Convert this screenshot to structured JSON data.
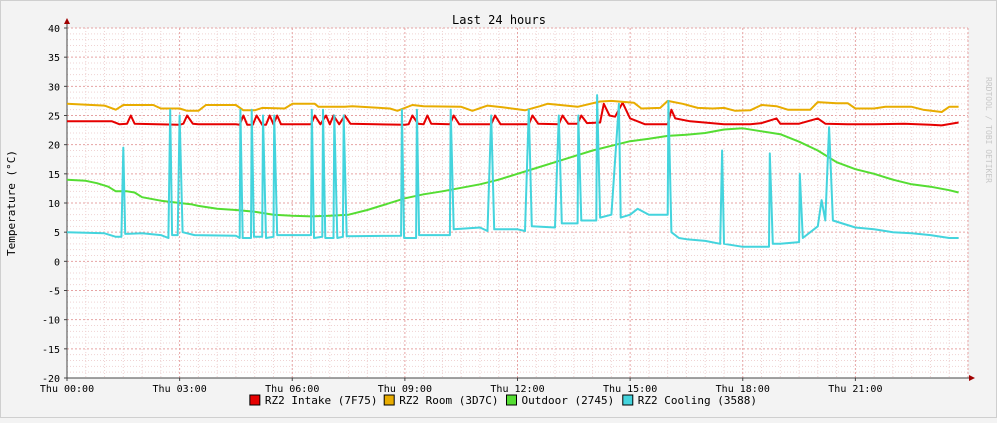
{
  "chart_data": {
    "type": "line",
    "title": "Last 24 hours",
    "ylabel": "Temperature (°C)",
    "xlabel": "",
    "watermark": "RRDTOOL / TOBI OETIKER",
    "ylim": [
      -20,
      40
    ],
    "y_ticks": [
      40,
      35,
      30,
      25,
      20,
      15,
      10,
      5,
      0,
      -5,
      -10,
      -15,
      -20
    ],
    "x_ticks": [
      "Thu 00:00",
      "Thu 03:00",
      "Thu 06:00",
      "Thu 09:00",
      "Thu 12:00",
      "Thu 15:00",
      "Thu 18:00",
      "Thu 21:00"
    ],
    "x_range_hours": [
      0,
      23.75
    ],
    "grid": true,
    "legend_position": "bottom",
    "series": [
      {
        "name": "RZ2 Intake (7F75)",
        "color": "#e60000",
        "points": [
          [
            0,
            24
          ],
          [
            1.2,
            24
          ],
          [
            1.4,
            23.5
          ],
          [
            1.6,
            23.6
          ],
          [
            1.7,
            25
          ],
          [
            1.8,
            23.6
          ],
          [
            3.0,
            23.4
          ],
          [
            3.1,
            23.6
          ],
          [
            3.2,
            25
          ],
          [
            3.35,
            23.6
          ],
          [
            3.5,
            23.5
          ],
          [
            4.5,
            23.5
          ],
          [
            4.6,
            23.4
          ],
          [
            4.7,
            25
          ],
          [
            4.8,
            23.4
          ],
          [
            4.95,
            23.4
          ],
          [
            5.05,
            25
          ],
          [
            5.2,
            23.4
          ],
          [
            5.3,
            23.4
          ],
          [
            5.4,
            25
          ],
          [
            5.5,
            23.5
          ],
          [
            5.6,
            25
          ],
          [
            5.7,
            23.5
          ],
          [
            6.5,
            23.5
          ],
          [
            6.6,
            25
          ],
          [
            6.75,
            23.5
          ],
          [
            6.9,
            25
          ],
          [
            7.0,
            23.5
          ],
          [
            7.1,
            25
          ],
          [
            7.25,
            23.5
          ],
          [
            7.4,
            25
          ],
          [
            7.55,
            23.6
          ],
          [
            9.0,
            23.4
          ],
          [
            9.1,
            23.5
          ],
          [
            9.2,
            25
          ],
          [
            9.35,
            23.6
          ],
          [
            9.5,
            23.5
          ],
          [
            9.6,
            25
          ],
          [
            9.7,
            23.6
          ],
          [
            10.2,
            23.5
          ],
          [
            10.3,
            25
          ],
          [
            10.45,
            23.5
          ],
          [
            11.3,
            23.5
          ],
          [
            11.4,
            25
          ],
          [
            11.55,
            23.5
          ],
          [
            12.3,
            23.5
          ],
          [
            12.4,
            25
          ],
          [
            12.55,
            23.6
          ],
          [
            13.1,
            23.5
          ],
          [
            13.2,
            25
          ],
          [
            13.35,
            23.6
          ],
          [
            13.6,
            23.6
          ],
          [
            13.7,
            25
          ],
          [
            13.85,
            23.7
          ],
          [
            14.2,
            23.8
          ],
          [
            14.3,
            27
          ],
          [
            14.45,
            25
          ],
          [
            14.6,
            24.8
          ],
          [
            14.8,
            27.2
          ],
          [
            15.0,
            24.5
          ],
          [
            15.4,
            23.5
          ],
          [
            16.0,
            23.5
          ],
          [
            16.1,
            26
          ],
          [
            16.2,
            24.5
          ],
          [
            16.6,
            24
          ],
          [
            17.5,
            23.5
          ],
          [
            18.2,
            23.5
          ],
          [
            18.5,
            23.7
          ],
          [
            18.9,
            24.5
          ],
          [
            19.0,
            23.6
          ],
          [
            19.5,
            23.6
          ],
          [
            20.0,
            24.5
          ],
          [
            20.2,
            23.6
          ],
          [
            20.8,
            23.5
          ],
          [
            21.5,
            23.5
          ],
          [
            22.3,
            23.6
          ],
          [
            23.0,
            23.4
          ],
          [
            23.3,
            23.3
          ],
          [
            23.75,
            23.8
          ]
        ]
      },
      {
        "name": "RZ2 Room (3D7C)",
        "color": "#e8ac00",
        "points": [
          [
            0,
            27
          ],
          [
            1.0,
            26.7
          ],
          [
            1.3,
            26
          ],
          [
            1.5,
            26.8
          ],
          [
            1.8,
            26.8
          ],
          [
            2.3,
            26.8
          ],
          [
            2.5,
            26.2
          ],
          [
            2.7,
            26.2
          ],
          [
            3.0,
            26.2
          ],
          [
            3.2,
            25.8
          ],
          [
            3.5,
            25.8
          ],
          [
            3.7,
            26.8
          ],
          [
            4.5,
            26.8
          ],
          [
            4.7,
            25.9
          ],
          [
            5.0,
            25.9
          ],
          [
            5.2,
            26.3
          ],
          [
            5.8,
            26.2
          ],
          [
            6.0,
            27
          ],
          [
            6.6,
            27
          ],
          [
            6.7,
            26.5
          ],
          [
            7.4,
            26.5
          ],
          [
            7.6,
            26.6
          ],
          [
            8.6,
            26.2
          ],
          [
            8.8,
            25.8
          ],
          [
            9.2,
            26.8
          ],
          [
            9.5,
            26.6
          ],
          [
            10.5,
            26.5
          ],
          [
            10.8,
            25.8
          ],
          [
            11.2,
            26.7
          ],
          [
            11.6,
            26.4
          ],
          [
            12.2,
            25.9
          ],
          [
            12.6,
            26.6
          ],
          [
            12.8,
            27
          ],
          [
            13.6,
            26.5
          ],
          [
            14.2,
            27.4
          ],
          [
            14.5,
            27.5
          ],
          [
            15.1,
            27.2
          ],
          [
            15.3,
            26.2
          ],
          [
            15.8,
            26.3
          ],
          [
            16.0,
            27.5
          ],
          [
            16.4,
            27
          ],
          [
            16.8,
            26.3
          ],
          [
            17.2,
            26.2
          ],
          [
            17.5,
            26.3
          ],
          [
            17.8,
            25.8
          ],
          [
            18.2,
            25.9
          ],
          [
            18.5,
            26.8
          ],
          [
            18.9,
            26.6
          ],
          [
            19.2,
            26
          ],
          [
            19.8,
            26
          ],
          [
            20.0,
            27.3
          ],
          [
            20.5,
            27.1
          ],
          [
            20.8,
            27.1
          ],
          [
            21.0,
            26.2
          ],
          [
            21.5,
            26.2
          ],
          [
            21.8,
            26.5
          ],
          [
            22.5,
            26.5
          ],
          [
            22.8,
            26
          ],
          [
            23.3,
            25.6
          ],
          [
            23.5,
            26.5
          ],
          [
            23.75,
            26.5
          ]
        ]
      },
      {
        "name": "Outdoor (2745)",
        "color": "#55dd33",
        "points": [
          [
            0,
            14
          ],
          [
            0.5,
            13.8
          ],
          [
            0.8,
            13.4
          ],
          [
            1.1,
            12.8
          ],
          [
            1.3,
            12
          ],
          [
            1.6,
            12
          ],
          [
            1.8,
            11.8
          ],
          [
            2.0,
            11
          ],
          [
            2.5,
            10.4
          ],
          [
            3.0,
            10
          ],
          [
            3.3,
            9.8
          ],
          [
            3.5,
            9.5
          ],
          [
            4.0,
            9
          ],
          [
            4.5,
            8.8
          ],
          [
            5.0,
            8.5
          ],
          [
            5.5,
            8
          ],
          [
            6.0,
            7.8
          ],
          [
            6.5,
            7.7
          ],
          [
            7.0,
            7.8
          ],
          [
            7.5,
            8
          ],
          [
            8.0,
            8.8
          ],
          [
            8.5,
            9.8
          ],
          [
            9.0,
            10.8
          ],
          [
            9.5,
            11.5
          ],
          [
            10.0,
            12
          ],
          [
            10.5,
            12.6
          ],
          [
            11.0,
            13.2
          ],
          [
            11.5,
            14
          ],
          [
            12.0,
            15
          ],
          [
            12.5,
            16
          ],
          [
            13.0,
            17
          ],
          [
            13.5,
            18
          ],
          [
            14.0,
            19
          ],
          [
            14.5,
            19.8
          ],
          [
            15.0,
            20.6
          ],
          [
            15.5,
            21
          ],
          [
            16.0,
            21.5
          ],
          [
            16.5,
            21.7
          ],
          [
            17.0,
            22
          ],
          [
            17.5,
            22.6
          ],
          [
            18.0,
            22.8
          ],
          [
            18.5,
            22.3
          ],
          [
            19.0,
            21.8
          ],
          [
            19.5,
            20.5
          ],
          [
            20.0,
            19
          ],
          [
            20.5,
            17
          ],
          [
            21.0,
            15.8
          ],
          [
            21.5,
            15
          ],
          [
            22.0,
            14
          ],
          [
            22.5,
            13.2
          ],
          [
            23.0,
            12.8
          ],
          [
            23.5,
            12.2
          ],
          [
            23.75,
            11.8
          ]
        ]
      },
      {
        "name": "RZ2 Cooling (3588)",
        "color": "#44d4dd",
        "points": [
          [
            0,
            5
          ],
          [
            1.0,
            4.8
          ],
          [
            1.3,
            4.2
          ],
          [
            1.45,
            4.2
          ],
          [
            1.5,
            19.5
          ],
          [
            1.55,
            4.7
          ],
          [
            2.0,
            4.8
          ],
          [
            2.5,
            4.5
          ],
          [
            2.7,
            4
          ],
          [
            2.75,
            26
          ],
          [
            2.8,
            4.5
          ],
          [
            2.95,
            4.5
          ],
          [
            3.0,
            25
          ],
          [
            3.08,
            5
          ],
          [
            3.4,
            4.5
          ],
          [
            4.5,
            4.4
          ],
          [
            4.6,
            4
          ],
          [
            4.62,
            26
          ],
          [
            4.68,
            4
          ],
          [
            4.9,
            4
          ],
          [
            4.92,
            26
          ],
          [
            4.98,
            4.2
          ],
          [
            5.2,
            4.2
          ],
          [
            5.22,
            25
          ],
          [
            5.3,
            4
          ],
          [
            5.5,
            4.2
          ],
          [
            5.52,
            25
          ],
          [
            5.6,
            4.5
          ],
          [
            6.5,
            4.5
          ],
          [
            6.52,
            26
          ],
          [
            6.58,
            4
          ],
          [
            6.8,
            4.2
          ],
          [
            6.82,
            26
          ],
          [
            6.88,
            4
          ],
          [
            7.1,
            4
          ],
          [
            7.12,
            25
          ],
          [
            7.2,
            4
          ],
          [
            7.35,
            4.2
          ],
          [
            7.37,
            25
          ],
          [
            7.45,
            4.3
          ],
          [
            8.9,
            4.4
          ],
          [
            8.92,
            26
          ],
          [
            8.98,
            4
          ],
          [
            9.3,
            4
          ],
          [
            9.32,
            26
          ],
          [
            9.38,
            4.5
          ],
          [
            10.2,
            4.5
          ],
          [
            10.22,
            26
          ],
          [
            10.3,
            5.5
          ],
          [
            11.0,
            5.8
          ],
          [
            11.2,
            5.2
          ],
          [
            11.3,
            25
          ],
          [
            11.38,
            5.5
          ],
          [
            12.0,
            5.5
          ],
          [
            12.2,
            5.2
          ],
          [
            12.3,
            26
          ],
          [
            12.38,
            6
          ],
          [
            13.0,
            5.8
          ],
          [
            13.1,
            25
          ],
          [
            13.18,
            6.5
          ],
          [
            13.6,
            6.5
          ],
          [
            13.62,
            25
          ],
          [
            13.7,
            7
          ],
          [
            14.1,
            7
          ],
          [
            14.12,
            28.5
          ],
          [
            14.2,
            7.5
          ],
          [
            14.5,
            8
          ],
          [
            14.7,
            27
          ],
          [
            14.75,
            7.5
          ],
          [
            15.0,
            8
          ],
          [
            15.2,
            9
          ],
          [
            15.5,
            8
          ],
          [
            15.8,
            8
          ],
          [
            16.0,
            8
          ],
          [
            16.02,
            27.5
          ],
          [
            16.1,
            5
          ],
          [
            16.3,
            4
          ],
          [
            16.5,
            3.8
          ],
          [
            17.0,
            3.5
          ],
          [
            17.4,
            3
          ],
          [
            17.45,
            19
          ],
          [
            17.5,
            3
          ],
          [
            18.0,
            2.5
          ],
          [
            18.5,
            2.5
          ],
          [
            18.7,
            2.5
          ],
          [
            18.72,
            18.5
          ],
          [
            18.8,
            3
          ],
          [
            19.0,
            3
          ],
          [
            19.5,
            3.3
          ],
          [
            19.52,
            15
          ],
          [
            19.6,
            4
          ],
          [
            20.0,
            6
          ],
          [
            20.1,
            10.5
          ],
          [
            20.2,
            7
          ],
          [
            20.3,
            23
          ],
          [
            20.4,
            7
          ],
          [
            21.0,
            5.8
          ],
          [
            21.5,
            5.5
          ],
          [
            22.0,
            5
          ],
          [
            22.5,
            4.8
          ],
          [
            23.0,
            4.5
          ],
          [
            23.5,
            4
          ],
          [
            23.75,
            4
          ]
        ]
      }
    ]
  }
}
